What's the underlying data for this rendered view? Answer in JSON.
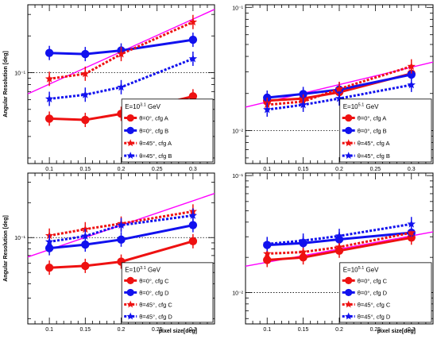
{
  "colors": {
    "red": "#ee1111",
    "blue": "#1111ee",
    "magenta": "#ff00ff",
    "frame": "#000000"
  },
  "chart_data": [
    {
      "type": "line",
      "panel": "top-left",
      "ylabel": "Angular Resolution [deg]",
      "xlabel": "",
      "x": [
        0.1,
        0.15,
        0.2,
        0.3
      ],
      "xticks": [
        "0.1",
        "0.15",
        "0.2",
        "0.25",
        "0.3"
      ],
      "ylim": [
        0.018,
        0.36
      ],
      "ytick_labels": [
        {
          "value": 0.1,
          "text": "10⁻¹"
        }
      ],
      "log_y": true,
      "reference_line": 0.1,
      "legend": {
        "title": "E=10",
        "title_sup": "3.1",
        "title_suffix": " GeV",
        "placement": "bottom-right"
      },
      "series": [
        {
          "name": "θ=0°, cfg A",
          "color": "#ee1111",
          "style": "solid",
          "marker": "circle",
          "values": [
            0.042,
            0.041,
            0.046,
            0.064
          ]
        },
        {
          "name": "θ=0°, cfg B",
          "color": "#1111ee",
          "style": "solid",
          "marker": "circle",
          "values": [
            0.145,
            0.142,
            0.152,
            0.186
          ]
        },
        {
          "name": "θ=45°, cfg A",
          "color": "#ee1111",
          "style": "dotted",
          "marker": "star",
          "values": [
            0.089,
            0.098,
            0.142,
            0.26
          ]
        },
        {
          "name": "θ=45°, cfg B",
          "color": "#1111ee",
          "style": "dotted",
          "marker": "star",
          "values": [
            0.061,
            0.066,
            0.076,
            0.13
          ]
        }
      ],
      "fit_line": {
        "x": [
          0.07,
          0.33
        ],
        "y": [
          0.067,
          0.33
        ]
      }
    },
    {
      "type": "line",
      "panel": "top-right",
      "ylabel": "",
      "xlabel": "",
      "x": [
        0.1,
        0.15,
        0.2,
        0.3
      ],
      "xticks": [
        "0.1",
        "0.15",
        "0.2",
        "0.25",
        "0.3"
      ],
      "ylim": [
        0.0054,
        0.105
      ],
      "ytick_labels": [
        {
          "value": 0.1,
          "text": "10⁻¹"
        },
        {
          "value": 0.01,
          "text": "10⁻²"
        }
      ],
      "log_y": true,
      "reference_line": 0.01,
      "legend": {
        "title": "E=10",
        "title_sup": "5.1",
        "title_suffix": " GeV",
        "placement": "bottom-right"
      },
      "series": [
        {
          "name": "θ=0°, cfg A",
          "color": "#ee1111",
          "style": "solid",
          "marker": "circle",
          "values": [
            0.0175,
            0.0182,
            0.0205,
            0.029
          ]
        },
        {
          "name": "θ=0°, cfg B",
          "color": "#1111ee",
          "style": "solid",
          "marker": "circle",
          "values": [
            0.0185,
            0.0198,
            0.0215,
            0.0285
          ]
        },
        {
          "name": "θ=45°, cfg A",
          "color": "#ee1111",
          "style": "dotted",
          "marker": "star",
          "values": [
            0.0162,
            0.0172,
            0.0218,
            0.0332
          ]
        },
        {
          "name": "θ=45°, cfg B",
          "color": "#1111ee",
          "style": "dotted",
          "marker": "star",
          "values": [
            0.0148,
            0.0162,
            0.0182,
            0.0235
          ]
        }
      ],
      "fit_line": {
        "x": [
          0.07,
          0.33
        ],
        "y": [
          0.0155,
          0.036
        ]
      }
    },
    {
      "type": "line",
      "panel": "bottom-left",
      "ylabel": "Angular Resolution [deg]",
      "xlabel": "pixel size[deg]",
      "x": [
        0.1,
        0.15,
        0.2,
        0.3
      ],
      "xticks": [
        "0.1",
        "0.15",
        "0.2",
        "0.25",
        "0.3"
      ],
      "ylim": [
        0.018,
        0.36
      ],
      "ytick_labels": [
        {
          "value": 0.1,
          "text": "10⁻¹"
        }
      ],
      "log_y": true,
      "reference_line": 0.1,
      "legend": {
        "title": "E=10",
        "title_sup": "3.1",
        "title_suffix": " GeV",
        "placement": "bottom-right"
      },
      "series": [
        {
          "name": "θ=0°, cfg C",
          "color": "#ee1111",
          "style": "solid",
          "marker": "circle",
          "values": [
            0.055,
            0.057,
            0.062,
            0.093
          ]
        },
        {
          "name": "θ=0°, cfg D",
          "color": "#1111ee",
          "style": "solid",
          "marker": "circle",
          "values": [
            0.081,
            0.087,
            0.096,
            0.128
          ]
        },
        {
          "name": "θ=45°, cfg C",
          "color": "#ee1111",
          "style": "dotted",
          "marker": "star",
          "values": [
            0.104,
            0.118,
            0.132,
            0.168
          ]
        },
        {
          "name": "θ=45°, cfg D",
          "color": "#1111ee",
          "style": "dotted",
          "marker": "star",
          "values": [
            0.092,
            0.103,
            0.128,
            0.155
          ]
        }
      ],
      "fit_line": {
        "x": [
          0.07,
          0.33
        ],
        "y": [
          0.068,
          0.24
        ]
      }
    },
    {
      "type": "line",
      "panel": "bottom-right",
      "ylabel": "",
      "xlabel": "pixel size[deg]",
      "x": [
        0.1,
        0.15,
        0.2,
        0.3
      ],
      "xticks": [
        "0.1",
        "0.15",
        "0.2",
        "0.25",
        "0.3"
      ],
      "ylim": [
        0.0054,
        0.105
      ],
      "ytick_labels": [
        {
          "value": 0.1,
          "text": "10⁻¹"
        },
        {
          "value": 0.01,
          "text": "10⁻²"
        }
      ],
      "log_y": true,
      "reference_line": 0.01,
      "legend": {
        "title": "E=10",
        "title_sup": "5.1",
        "title_suffix": " GeV",
        "placement": "bottom-right"
      },
      "series": [
        {
          "name": "θ=0°, cfg C",
          "color": "#ee1111",
          "style": "solid",
          "marker": "circle",
          "values": [
            0.019,
            0.02,
            0.0228,
            0.0295
          ]
        },
        {
          "name": "θ=0°, cfg D",
          "color": "#1111ee",
          "style": "solid",
          "marker": "circle",
          "values": [
            0.0255,
            0.0265,
            0.0285,
            0.0325
          ]
        },
        {
          "name": "θ=45°, cfg C",
          "color": "#ee1111",
          "style": "dotted",
          "marker": "star",
          "values": [
            0.0215,
            0.0222,
            0.0245,
            0.0325
          ]
        },
        {
          "name": "θ=45°, cfg D",
          "color": "#1111ee",
          "style": "dotted",
          "marker": "star",
          "values": [
            0.026,
            0.0278,
            0.0305,
            0.0385
          ]
        }
      ],
      "fit_line": {
        "x": [
          0.07,
          0.33
        ],
        "y": [
          0.0168,
          0.033
        ]
      }
    }
  ]
}
